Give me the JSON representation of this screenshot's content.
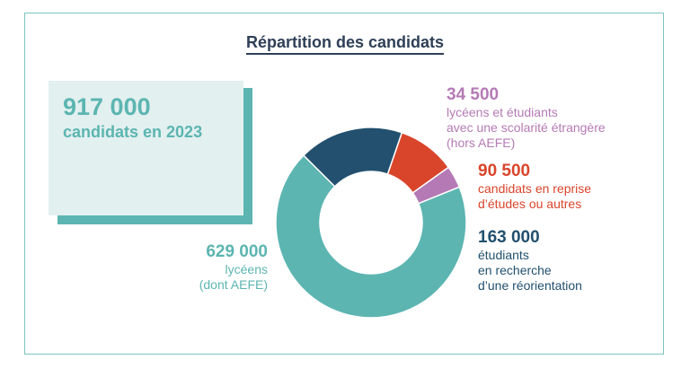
{
  "chart_data": {
    "type": "pie",
    "variant": "donut",
    "title": "Répartition des candidats",
    "total": {
      "value": "917 000",
      "label": "candidats en 2023"
    },
    "slices": [
      {
        "value": 629000,
        "value_label": "629 000",
        "label_lines": [
          "lycéens",
          "(dont AEFE)"
        ],
        "color": "#5cb5b1"
      },
      {
        "value": 163000,
        "value_label": "163 000",
        "label_lines": [
          "étudiants",
          "en recherche",
          "d’une réorientation"
        ],
        "color": "#22506e"
      },
      {
        "value": 90500,
        "value_label": "90 500",
        "label_lines": [
          "candidats en reprise",
          "d’études ou autres"
        ],
        "color": "#d9452b"
      },
      {
        "value": 34500,
        "value_label": "34 500",
        "label_lines": [
          "lycéens et étudiants",
          "avec une scolarité étrangère",
          "(hors AEFE)"
        ],
        "color": "#b57ab5"
      }
    ]
  }
}
